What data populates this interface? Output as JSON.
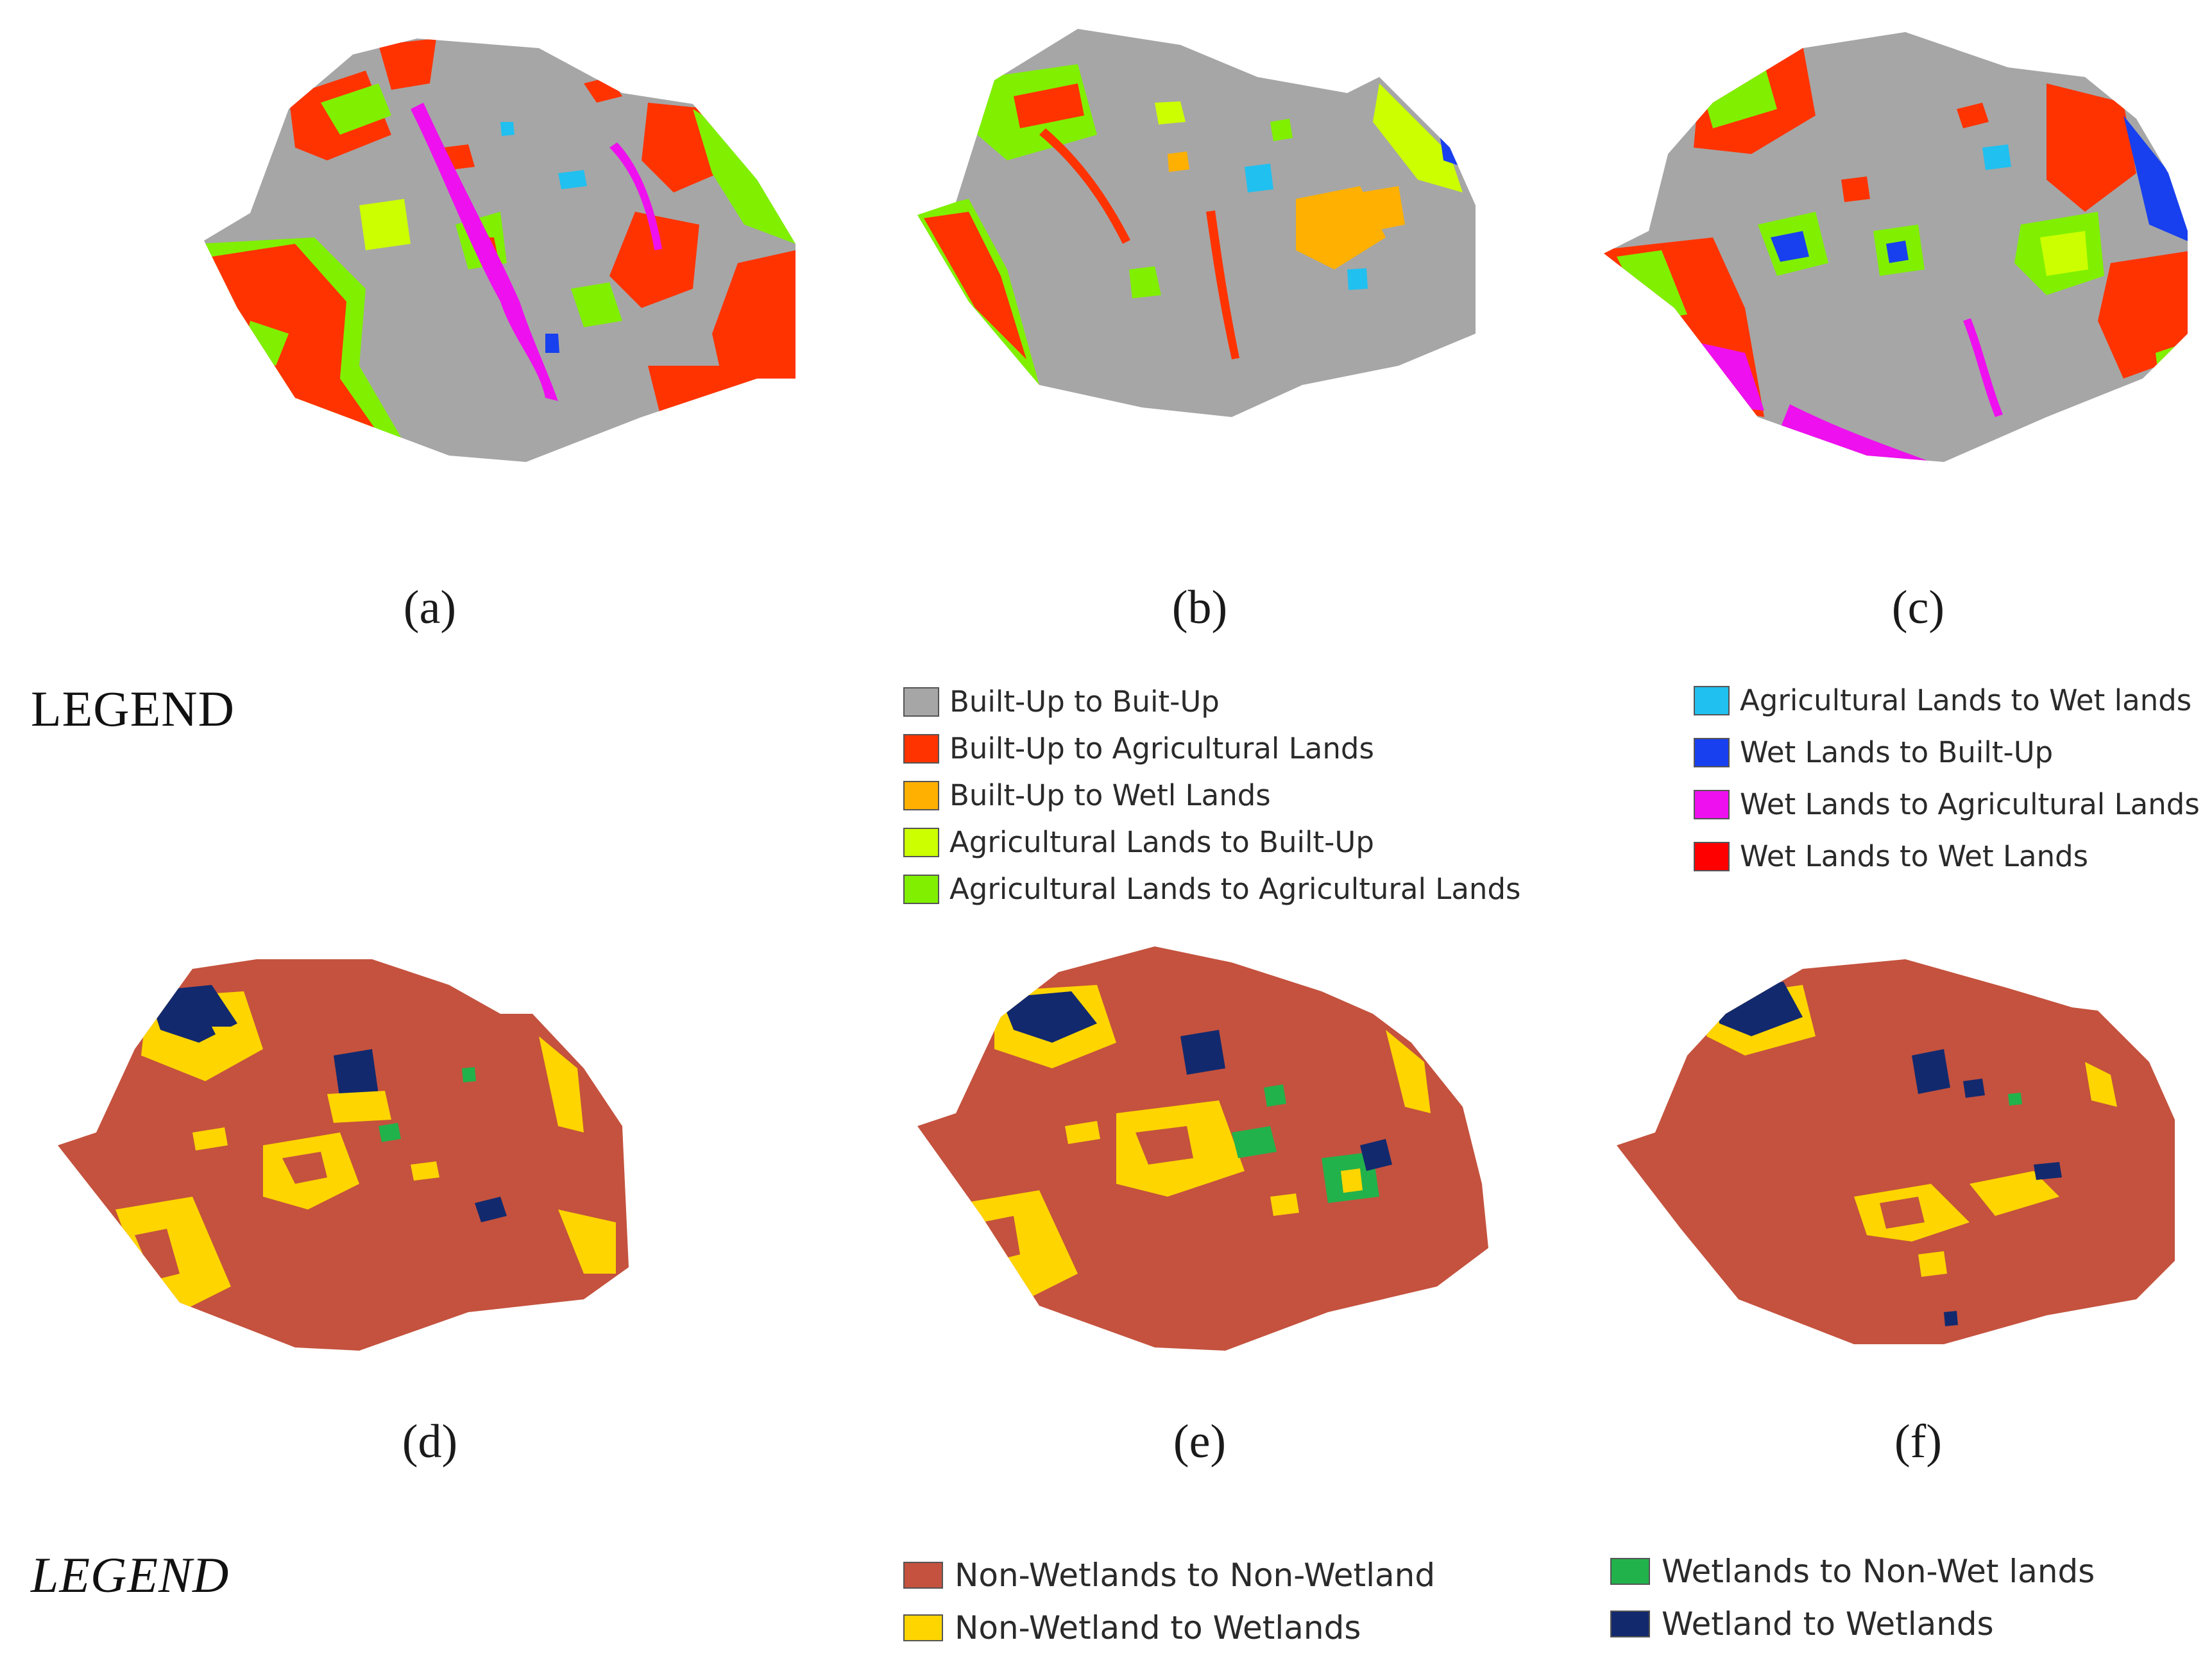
{
  "panels": {
    "top": [
      {
        "id": "a",
        "caption": "(a)"
      },
      {
        "id": "b",
        "caption": "(b)"
      },
      {
        "id": "c",
        "caption": "(c)"
      }
    ],
    "bottom": [
      {
        "id": "d",
        "caption": "(d)"
      },
      {
        "id": "e",
        "caption": "(e)"
      },
      {
        "id": "f",
        "caption": "(f)"
      }
    ]
  },
  "legend_top": {
    "title": "LEGEND",
    "column_1": [
      {
        "label": "Built-Up to Buit-Up",
        "color": "#a6a6a6"
      },
      {
        "label": "Built-Up to Agricultural Lands",
        "color": "#ff3300"
      },
      {
        "label": "Built-Up to Wetl Lands",
        "color": "#ffb000"
      },
      {
        "label": "Agricultural Lands to Built-Up",
        "color": "#ccff00"
      },
      {
        "label": "Agricultural Lands  to Agricultural Lands",
        "color": "#80f000"
      }
    ],
    "column_2": [
      {
        "label": "Agricultural Lands  to Wet lands",
        "color": "#20c0f0"
      },
      {
        "label": "Wet Lands  to Built-Up",
        "color": "#1840ee"
      },
      {
        "label": "Wet Lands to Agricultural Lands",
        "color": "#ee10ee"
      },
      {
        "label": "Wet Lands to Wet Lands",
        "color": "#ff0000"
      }
    ]
  },
  "legend_bottom": {
    "title": "LEGEND",
    "column_1": [
      {
        "label": "Non-Wetlands to Non-Wetland",
        "color": "#c4523e"
      },
      {
        "label": "Non-Wetland to Wetlands",
        "color": "#ffd500"
      }
    ],
    "column_2": [
      {
        "label": "Wetlands to Non-Wet lands",
        "color": "#22b24c"
      },
      {
        "label": "Wetland to Wetlands",
        "color": "#12296e"
      }
    ]
  },
  "colors": {
    "builtup_base": "#a6a6a6",
    "nonwetland_base": "#c4523e"
  }
}
